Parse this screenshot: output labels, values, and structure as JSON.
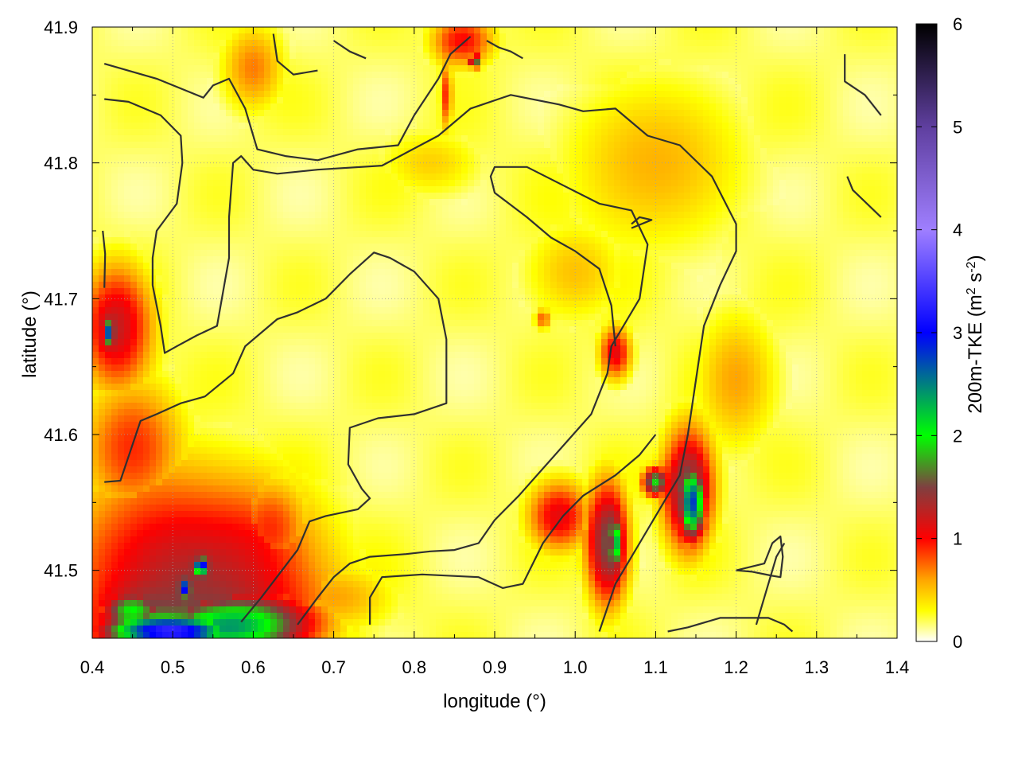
{
  "chart_data": {
    "type": "heatmap",
    "xlabel": "longitude (°)",
    "ylabel": "latitude (°)",
    "colorbar_label": "200m-TKE (m",
    "colorbar_label_sup1": "2",
    "colorbar_label_mid": " s",
    "colorbar_label_sup2": "-2",
    "colorbar_label_end": ")",
    "xlim": [
      0.4,
      1.4
    ],
    "ylim": [
      41.45,
      41.9
    ],
    "x_ticks": [
      0.4,
      0.5,
      0.6,
      0.7,
      0.8,
      0.9,
      1.0,
      1.1,
      1.2,
      1.3,
      1.4
    ],
    "x_tick_labels": [
      "0.4",
      "0.5",
      "0.6",
      "0.7",
      "0.8",
      "0.9",
      "1.0",
      "1.1",
      "1.2",
      "1.3",
      "1.4"
    ],
    "y_ticks": [
      41.5,
      41.6,
      41.7,
      41.8,
      41.9
    ],
    "y_tick_labels": [
      "41.5",
      "41.6",
      "41.7",
      "41.8",
      "41.9"
    ],
    "colorbar_range": [
      0,
      6
    ],
    "colorbar_ticks": [
      0,
      1,
      2,
      3,
      4,
      5,
      6
    ],
    "colorbar_tick_labels": [
      "0",
      "1",
      "2",
      "3",
      "4",
      "5",
      "6"
    ],
    "grid": true,
    "colormap": [
      {
        "value": 0.0,
        "color": "#ffffff"
      },
      {
        "value": 0.3,
        "color": "#ffff00"
      },
      {
        "value": 0.6,
        "color": "#ffa500"
      },
      {
        "value": 1.0,
        "color": "#ff0000"
      },
      {
        "value": 1.5,
        "color": "#7f4040"
      },
      {
        "value": 2.0,
        "color": "#00ff00"
      },
      {
        "value": 3.0,
        "color": "#0000ff"
      },
      {
        "value": 4.0,
        "color": "#9f7fff"
      },
      {
        "value": 5.0,
        "color": "#5f3f9f"
      },
      {
        "value": 6.0,
        "color": "#000000"
      }
    ],
    "field_features": [
      {
        "lon": 0.43,
        "lat": 41.68,
        "sx": 0.035,
        "sy": 0.035,
        "value": 1.2
      },
      {
        "lon": 0.42,
        "lat": 41.675,
        "sx": 0.006,
        "sy": 0.007,
        "value": 2.8
      },
      {
        "lon": 0.52,
        "lat": 41.49,
        "sx": 0.12,
        "sy": 0.06,
        "value": 1.3
      },
      {
        "lon": 0.58,
        "lat": 41.46,
        "sx": 0.07,
        "sy": 0.018,
        "value": 2.2
      },
      {
        "lon": 0.5,
        "lat": 41.455,
        "sx": 0.06,
        "sy": 0.01,
        "value": 3.3
      },
      {
        "lon": 0.45,
        "lat": 41.47,
        "sx": 0.03,
        "sy": 0.012,
        "value": 2.0
      },
      {
        "lon": 0.535,
        "lat": 41.503,
        "sx": 0.006,
        "sy": 0.005,
        "value": 3.5
      },
      {
        "lon": 0.515,
        "lat": 41.487,
        "sx": 0.005,
        "sy": 0.005,
        "value": 3.2
      },
      {
        "lon": 0.45,
        "lat": 41.59,
        "sx": 0.05,
        "sy": 0.04,
        "value": 0.9
      },
      {
        "lon": 0.6,
        "lat": 41.87,
        "sx": 0.03,
        "sy": 0.025,
        "value": 0.7
      },
      {
        "lon": 0.86,
        "lat": 41.89,
        "sx": 0.03,
        "sy": 0.015,
        "value": 1.0
      },
      {
        "lon": 0.875,
        "lat": 41.875,
        "sx": 0.004,
        "sy": 0.004,
        "value": 2.3
      },
      {
        "lon": 0.84,
        "lat": 41.85,
        "sx": 0.006,
        "sy": 0.02,
        "value": 0.9
      },
      {
        "lon": 0.82,
        "lat": 41.8,
        "sx": 0.05,
        "sy": 0.02,
        "value": 0.45
      },
      {
        "lon": 1.1,
        "lat": 41.8,
        "sx": 0.09,
        "sy": 0.05,
        "value": 0.55
      },
      {
        "lon": 1.14,
        "lat": 41.56,
        "sx": 0.025,
        "sy": 0.035,
        "value": 1.4
      },
      {
        "lon": 1.145,
        "lat": 41.55,
        "sx": 0.012,
        "sy": 0.02,
        "value": 2.8
      },
      {
        "lon": 1.1,
        "lat": 41.565,
        "sx": 0.012,
        "sy": 0.008,
        "value": 1.9
      },
      {
        "lon": 1.04,
        "lat": 41.52,
        "sx": 0.02,
        "sy": 0.035,
        "value": 1.5
      },
      {
        "lon": 1.05,
        "lat": 41.52,
        "sx": 0.006,
        "sy": 0.015,
        "value": 2.4
      },
      {
        "lon": 0.98,
        "lat": 41.54,
        "sx": 0.03,
        "sy": 0.02,
        "value": 1.1
      },
      {
        "lon": 1.05,
        "lat": 41.66,
        "sx": 0.015,
        "sy": 0.015,
        "value": 1.1
      },
      {
        "lon": 1.0,
        "lat": 41.72,
        "sx": 0.05,
        "sy": 0.03,
        "value": 0.5
      },
      {
        "lon": 1.2,
        "lat": 41.64,
        "sx": 0.04,
        "sy": 0.04,
        "value": 0.6
      },
      {
        "lon": 0.7,
        "lat": 41.48,
        "sx": 0.06,
        "sy": 0.02,
        "value": 0.6
      },
      {
        "lon": 0.96,
        "lat": 41.685,
        "sx": 0.008,
        "sy": 0.006,
        "value": 0.8
      },
      {
        "lon": 0.62,
        "lat": 41.53,
        "sx": 0.04,
        "sy": 0.03,
        "value": 0.9
      }
    ],
    "contours": [
      [
        [
          0.415,
          41.873
        ],
        [
          0.48,
          41.862
        ],
        [
          0.538,
          41.848
        ],
        [
          0.55,
          41.857
        ],
        [
          0.57,
          41.862
        ],
        [
          0.59,
          41.84
        ],
        [
          0.605,
          41.81
        ],
        [
          0.64,
          41.805
        ],
        [
          0.68,
          41.802
        ],
        [
          0.73,
          41.81
        ],
        [
          0.78,
          41.813
        ],
        [
          0.8,
          41.835
        ],
        [
          0.83,
          41.862
        ],
        [
          0.845,
          41.88
        ],
        [
          0.87,
          41.893
        ]
      ],
      [
        [
          0.415,
          41.847
        ],
        [
          0.445,
          41.845
        ],
        [
          0.485,
          41.835
        ],
        [
          0.51,
          41.82
        ],
        [
          0.512,
          41.8
        ],
        [
          0.505,
          41.77
        ],
        [
          0.48,
          41.75
        ],
        [
          0.475,
          41.73
        ],
        [
          0.475,
          41.71
        ],
        [
          0.485,
          41.68
        ],
        [
          0.49,
          41.66
        ],
        [
          0.505,
          41.665
        ],
        [
          0.53,
          41.673
        ],
        [
          0.555,
          41.68
        ],
        [
          0.57,
          41.73
        ],
        [
          0.57,
          41.76
        ],
        [
          0.575,
          41.8
        ],
        [
          0.585,
          41.805
        ],
        [
          0.6,
          41.795
        ],
        [
          0.63,
          41.792
        ],
        [
          0.68,
          41.795
        ],
        [
          0.76,
          41.798
        ],
        [
          0.83,
          41.82
        ],
        [
          0.87,
          41.84
        ],
        [
          0.92,
          41.85
        ],
        [
          0.98,
          41.843
        ],
        [
          1.01,
          41.838
        ],
        [
          1.05,
          41.84
        ],
        [
          1.09,
          41.82
        ],
        [
          1.13,
          41.813
        ],
        [
          1.17,
          41.79
        ],
        [
          1.2,
          41.755
        ],
        [
          1.2,
          41.735
        ],
        [
          1.18,
          41.71
        ],
        [
          1.16,
          41.68
        ],
        [
          1.15,
          41.64
        ],
        [
          1.14,
          41.6
        ],
        [
          1.13,
          41.57
        ],
        [
          1.11,
          41.55
        ],
        [
          1.08,
          41.52
        ],
        [
          1.05,
          41.49
        ],
        [
          1.03,
          41.455
        ]
      ],
      [
        [
          0.415,
          41.708
        ],
        [
          0.416,
          41.733
        ],
        [
          0.413,
          41.75
        ]
      ],
      [
        [
          0.415,
          41.565
        ],
        [
          0.435,
          41.566
        ],
        [
          0.46,
          41.61
        ],
        [
          0.48,
          41.615
        ],
        [
          0.51,
          41.623
        ],
        [
          0.54,
          41.628
        ],
        [
          0.575,
          41.645
        ],
        [
          0.59,
          41.665
        ],
        [
          0.61,
          41.675
        ],
        [
          0.63,
          41.685
        ],
        [
          0.655,
          41.69
        ],
        [
          0.69,
          41.7
        ],
        [
          0.72,
          41.718
        ],
        [
          0.75,
          41.734
        ],
        [
          0.77,
          41.73
        ],
        [
          0.8,
          41.72
        ],
        [
          0.83,
          41.7
        ],
        [
          0.84,
          41.67
        ],
        [
          0.84,
          41.648
        ],
        [
          0.84,
          41.623
        ],
        [
          0.8,
          41.615
        ],
        [
          0.755,
          41.612
        ],
        [
          0.72,
          41.605
        ],
        [
          0.718,
          41.578
        ],
        [
          0.735,
          41.56
        ],
        [
          0.745,
          41.553
        ],
        [
          0.73,
          41.545
        ],
        [
          0.69,
          41.54
        ],
        [
          0.67,
          41.536
        ],
        [
          0.655,
          41.515
        ],
        [
          0.61,
          41.48
        ],
        [
          0.585,
          41.462
        ]
      ],
      [
        [
          0.655,
          41.46
        ],
        [
          0.68,
          41.48
        ],
        [
          0.7,
          41.495
        ],
        [
          0.72,
          41.505
        ],
        [
          0.745,
          41.51
        ],
        [
          0.79,
          41.512
        ],
        [
          0.82,
          41.514
        ],
        [
          0.85,
          41.515
        ],
        [
          0.88,
          41.52
        ],
        [
          0.9,
          41.537
        ],
        [
          0.93,
          41.555
        ],
        [
          0.96,
          41.575
        ],
        [
          0.99,
          41.595
        ],
        [
          1.02,
          41.615
        ],
        [
          1.04,
          41.645
        ],
        [
          1.045,
          41.665
        ],
        [
          1.06,
          41.68
        ],
        [
          1.08,
          41.7
        ],
        [
          1.09,
          41.74
        ],
        [
          1.07,
          41.765
        ],
        [
          1.03,
          41.77
        ],
        [
          0.98,
          41.785
        ],
        [
          0.94,
          41.797
        ],
        [
          0.9,
          41.797
        ],
        [
          0.895,
          41.79
        ],
        [
          0.9,
          41.778
        ],
        [
          0.94,
          41.76
        ],
        [
          0.97,
          41.745
        ],
        [
          1.0,
          41.735
        ],
        [
          1.03,
          41.722
        ],
        [
          1.045,
          41.695
        ],
        [
          1.05,
          41.665
        ]
      ],
      [
        [
          0.745,
          41.46
        ],
        [
          0.745,
          41.48
        ],
        [
          0.76,
          41.495
        ],
        [
          0.81,
          41.497
        ],
        [
          0.88,
          41.495
        ],
        [
          0.91,
          41.487
        ],
        [
          0.935,
          41.49
        ],
        [
          0.96,
          41.52
        ],
        [
          0.985,
          41.54
        ],
        [
          1.01,
          41.555
        ],
        [
          1.05,
          41.57
        ],
        [
          1.08,
          41.585
        ],
        [
          1.1,
          41.6
        ]
      ],
      [
        [
          1.07,
          41.755
        ],
        [
          1.08,
          41.76
        ],
        [
          1.095,
          41.758
        ],
        [
          1.07,
          41.752
        ]
      ],
      [
        [
          1.115,
          41.455
        ],
        [
          1.14,
          41.458
        ],
        [
          1.18,
          41.465
        ],
        [
          1.24,
          41.465
        ],
        [
          1.26,
          41.46
        ],
        [
          1.27,
          41.455
        ]
      ],
      [
        [
          1.2,
          41.5
        ],
        [
          1.22,
          41.499
        ],
        [
          1.245,
          41.496
        ],
        [
          1.255,
          41.495
        ],
        [
          1.258,
          41.51
        ],
        [
          1.255,
          41.525
        ],
        [
          1.245,
          41.52
        ],
        [
          1.235,
          41.505
        ],
        [
          1.2,
          41.5
        ]
      ],
      [
        [
          1.338,
          41.79
        ],
        [
          1.345,
          41.78
        ],
        [
          1.38,
          41.76
        ]
      ],
      [
        [
          1.335,
          41.88
        ],
        [
          1.335,
          41.86
        ],
        [
          1.36,
          41.85
        ],
        [
          1.38,
          41.835
        ]
      ],
      [
        [
          0.89,
          41.89
        ],
        [
          0.905,
          41.885
        ],
        [
          0.92,
          41.882
        ],
        [
          0.935,
          41.877
        ]
      ],
      [
        [
          0.7,
          41.89
        ],
        [
          0.72,
          41.882
        ],
        [
          0.74,
          41.877
        ]
      ],
      [
        [
          0.625,
          41.895
        ],
        [
          0.63,
          41.875
        ],
        [
          0.65,
          41.865
        ],
        [
          0.68,
          41.868
        ]
      ],
      [
        [
          1.225,
          41.46
        ],
        [
          1.24,
          41.49
        ],
        [
          1.25,
          41.51
        ],
        [
          1.26,
          41.52
        ]
      ]
    ]
  }
}
